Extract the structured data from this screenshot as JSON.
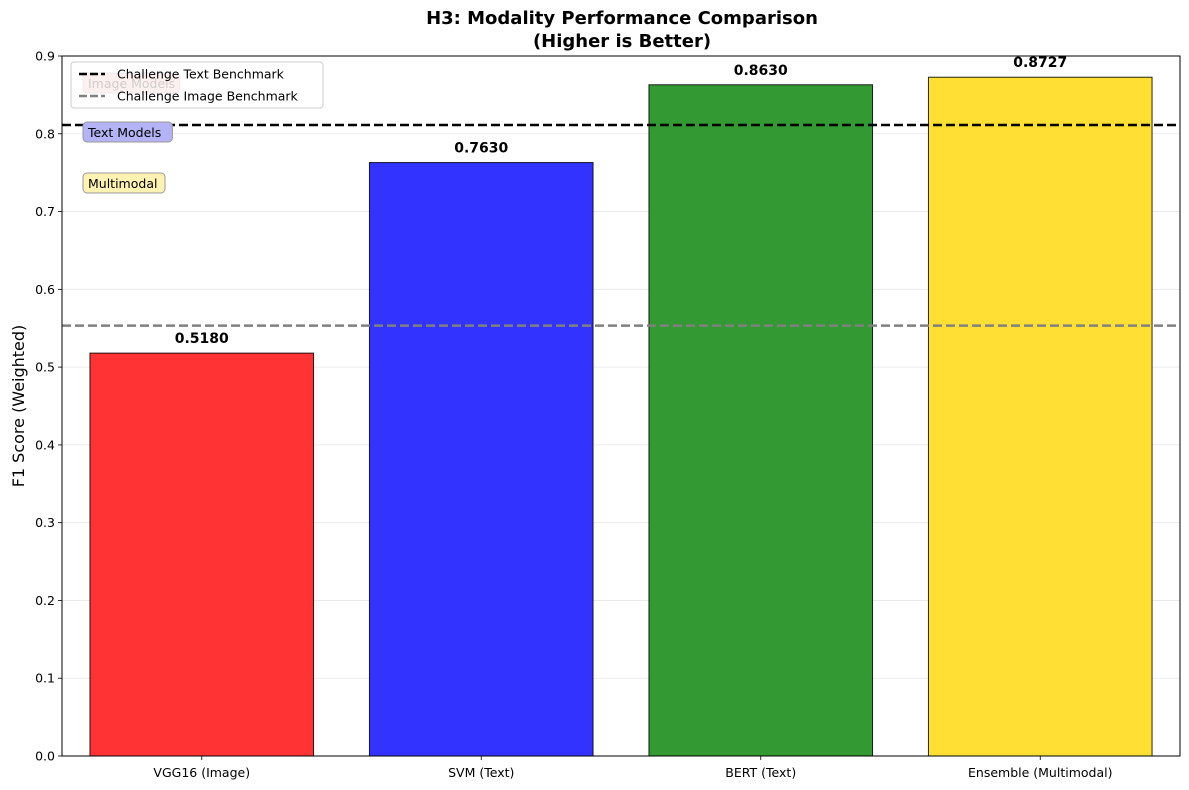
{
  "chart_data": {
    "type": "bar",
    "title_line1": "H3: Modality Performance Comparison",
    "title_line2": "(Higher is Better)",
    "xlabel": "",
    "ylabel": "F1 Score (Weighted)",
    "ylim": [
      0,
      0.9
    ],
    "yticks": [
      0.0,
      0.1,
      0.2,
      0.3,
      0.4,
      0.5,
      0.6,
      0.7,
      0.8,
      0.9
    ],
    "ytick_labels": [
      "0.0",
      "0.1",
      "0.2",
      "0.3",
      "0.4",
      "0.5",
      "0.6",
      "0.7",
      "0.8",
      "0.9"
    ],
    "grid": "y",
    "categories": [
      "VGG16 (Image)",
      "SVM (Text)",
      "BERT (Text)",
      "Ensemble (Multimodal)"
    ],
    "values": [
      0.518,
      0.763,
      0.863,
      0.8727
    ],
    "value_labels": [
      "0.5180",
      "0.7630",
      "0.8630",
      "0.8727"
    ],
    "bar_colors": [
      "#ff3333",
      "#3333ff",
      "#339933",
      "#ffdf33"
    ],
    "reference_lines": [
      {
        "name": "Challenge Text Benchmark",
        "value": 0.8113,
        "color": "#000000",
        "style": "dashed"
      },
      {
        "name": "Challenge Image Benchmark",
        "value": 0.5534,
        "color": "#808080",
        "style": "dashed"
      }
    ],
    "legend_position": "top-left",
    "annotations": [
      {
        "text": "Image Models",
        "color": "#ffb3b3"
      },
      {
        "text": "Text Models",
        "color": "#b3b3f5"
      },
      {
        "text": "Multimodal",
        "color": "#fff2b3"
      }
    ]
  }
}
